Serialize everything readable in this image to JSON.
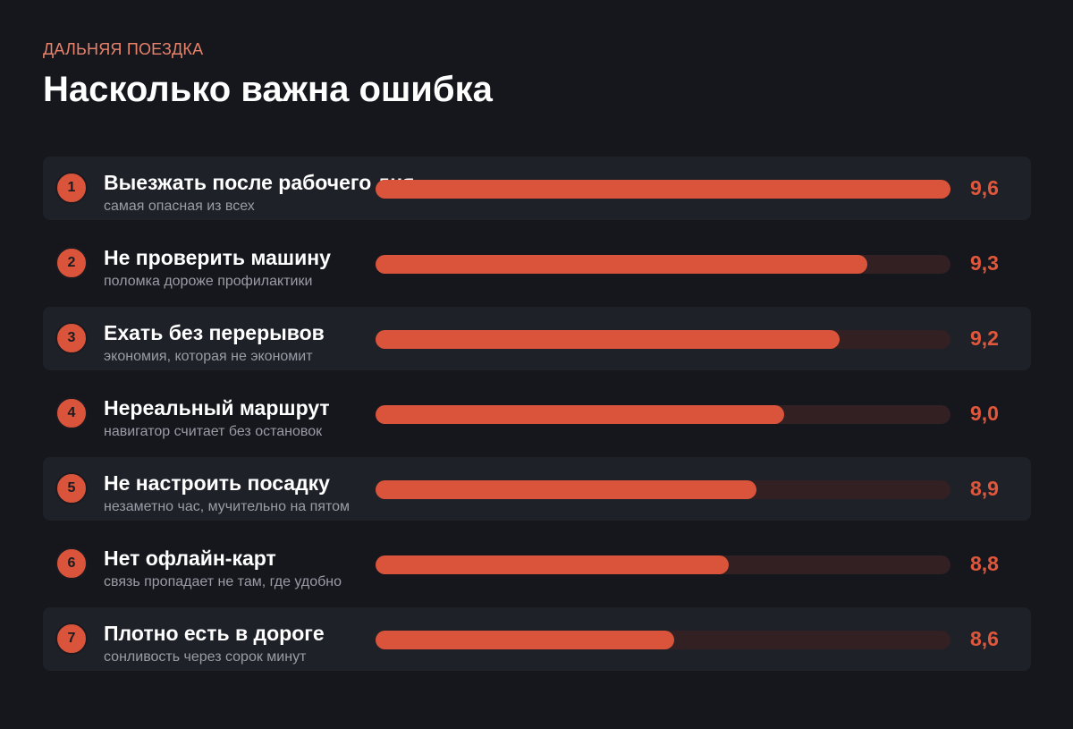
{
  "header": {
    "kicker": "ДАЛЬНЯЯ ПОЕЗДКА",
    "title": "Насколько важна ошибка"
  },
  "colors": {
    "background": "#16171d",
    "accent": "#d9543a",
    "track": "#322022",
    "row_shade": "#1f2129"
  },
  "chart_data": {
    "type": "bar",
    "orientation": "horizontal",
    "categories": [
      "Выезжать после рабочего дня",
      "Не проверить машину",
      "Ехать без перерывов",
      "Нереальный маршрут",
      "Не настроить посадку",
      "Нет офлайн-карт",
      "Плотно есть в дороге"
    ],
    "subtitles": [
      "самая опасная из всех",
      "поломка дороже профилактики",
      "экономия, которая не экономит",
      "навигатор считает без остановок",
      "незаметно час, мучительно на пятом",
      "связь пропадает не там, где удобно",
      "сонливость через сорок минут"
    ],
    "ranks": [
      "1",
      "2",
      "3",
      "4",
      "5",
      "6",
      "7"
    ],
    "values": [
      9.6,
      9.3,
      9.2,
      9.0,
      8.9,
      8.8,
      8.6
    ],
    "value_labels": [
      "9,6",
      "9,3",
      "9,2",
      "9,0",
      "8,9",
      "8,8",
      "8,6"
    ],
    "xlim": [
      8.0,
      9.6
    ],
    "legend": "none",
    "grid": false
  }
}
